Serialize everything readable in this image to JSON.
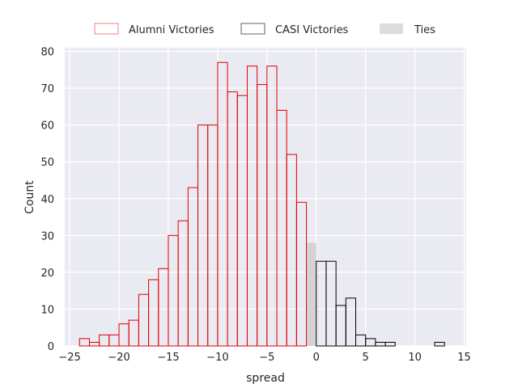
{
  "chart_data": {
    "type": "histogram",
    "title": "",
    "xlabel": "spread",
    "ylabel": "Count",
    "xlim": [
      -25.5,
      15.2
    ],
    "ylim": [
      0,
      81
    ],
    "bin_width": 1,
    "xticks": [
      -25,
      -20,
      -15,
      -10,
      -5,
      0,
      5,
      10,
      15
    ],
    "yticks": [
      0,
      10,
      20,
      30,
      40,
      50,
      60,
      70,
      80
    ],
    "grid": true,
    "legend_position": "top-center",
    "series": [
      {
        "name": "Alumni Victories",
        "style": "outline",
        "color": "#e00000",
        "bins": [
          {
            "x0": -24,
            "x1": -23,
            "count": 2
          },
          {
            "x0": -23,
            "x1": -22,
            "count": 1
          },
          {
            "x0": -22,
            "x1": -21,
            "count": 3
          },
          {
            "x0": -21,
            "x1": -20,
            "count": 3
          },
          {
            "x0": -20,
            "x1": -19,
            "count": 6
          },
          {
            "x0": -19,
            "x1": -18,
            "count": 7
          },
          {
            "x0": -18,
            "x1": -17,
            "count": 14
          },
          {
            "x0": -17,
            "x1": -16,
            "count": 18
          },
          {
            "x0": -16,
            "x1": -15,
            "count": 21
          },
          {
            "x0": -15,
            "x1": -14,
            "count": 30
          },
          {
            "x0": -14,
            "x1": -13,
            "count": 34
          },
          {
            "x0": -13,
            "x1": -12,
            "count": 43
          },
          {
            "x0": -12,
            "x1": -11,
            "count": 60
          },
          {
            "x0": -11,
            "x1": -10,
            "count": 60
          },
          {
            "x0": -10,
            "x1": -9,
            "count": 77
          },
          {
            "x0": -9,
            "x1": -8,
            "count": 69
          },
          {
            "x0": -8,
            "x1": -7,
            "count": 68
          },
          {
            "x0": -7,
            "x1": -6,
            "count": 76
          },
          {
            "x0": -6,
            "x1": -5,
            "count": 71
          },
          {
            "x0": -5,
            "x1": -4,
            "count": 76
          },
          {
            "x0": -4,
            "x1": -3,
            "count": 64
          },
          {
            "x0": -3,
            "x1": -2,
            "count": 52
          },
          {
            "x0": -2,
            "x1": -1,
            "count": 39
          }
        ]
      },
      {
        "name": "CASI Victories",
        "style": "outline",
        "color": "#000000",
        "bins": [
          {
            "x0": 0,
            "x1": 1,
            "count": 23
          },
          {
            "x0": 1,
            "x1": 2,
            "count": 23
          },
          {
            "x0": 2,
            "x1": 3,
            "count": 11
          },
          {
            "x0": 3,
            "x1": 4,
            "count": 13
          },
          {
            "x0": 4,
            "x1": 5,
            "count": 3
          },
          {
            "x0": 5,
            "x1": 6,
            "count": 2
          },
          {
            "x0": 6,
            "x1": 7,
            "count": 1
          },
          {
            "x0": 7,
            "x1": 8,
            "count": 1
          },
          {
            "x0": 12,
            "x1": 13,
            "count": 1
          }
        ]
      },
      {
        "name": "Ties",
        "style": "filled",
        "color": "#d3d3d3",
        "bins": [
          {
            "x0": -1,
            "x1": 0,
            "count": 28
          }
        ]
      }
    ]
  },
  "colors": {
    "plot_background": "#eaeaf2",
    "grid": "#ffffff",
    "alumni": "#e00000",
    "alumni_legend": "#f08080",
    "casi": "#000000",
    "casi_legend": "#606060",
    "ties_fill": "#d3d3d3",
    "ties_legend": "#dcdcdc",
    "text": "#262626"
  }
}
